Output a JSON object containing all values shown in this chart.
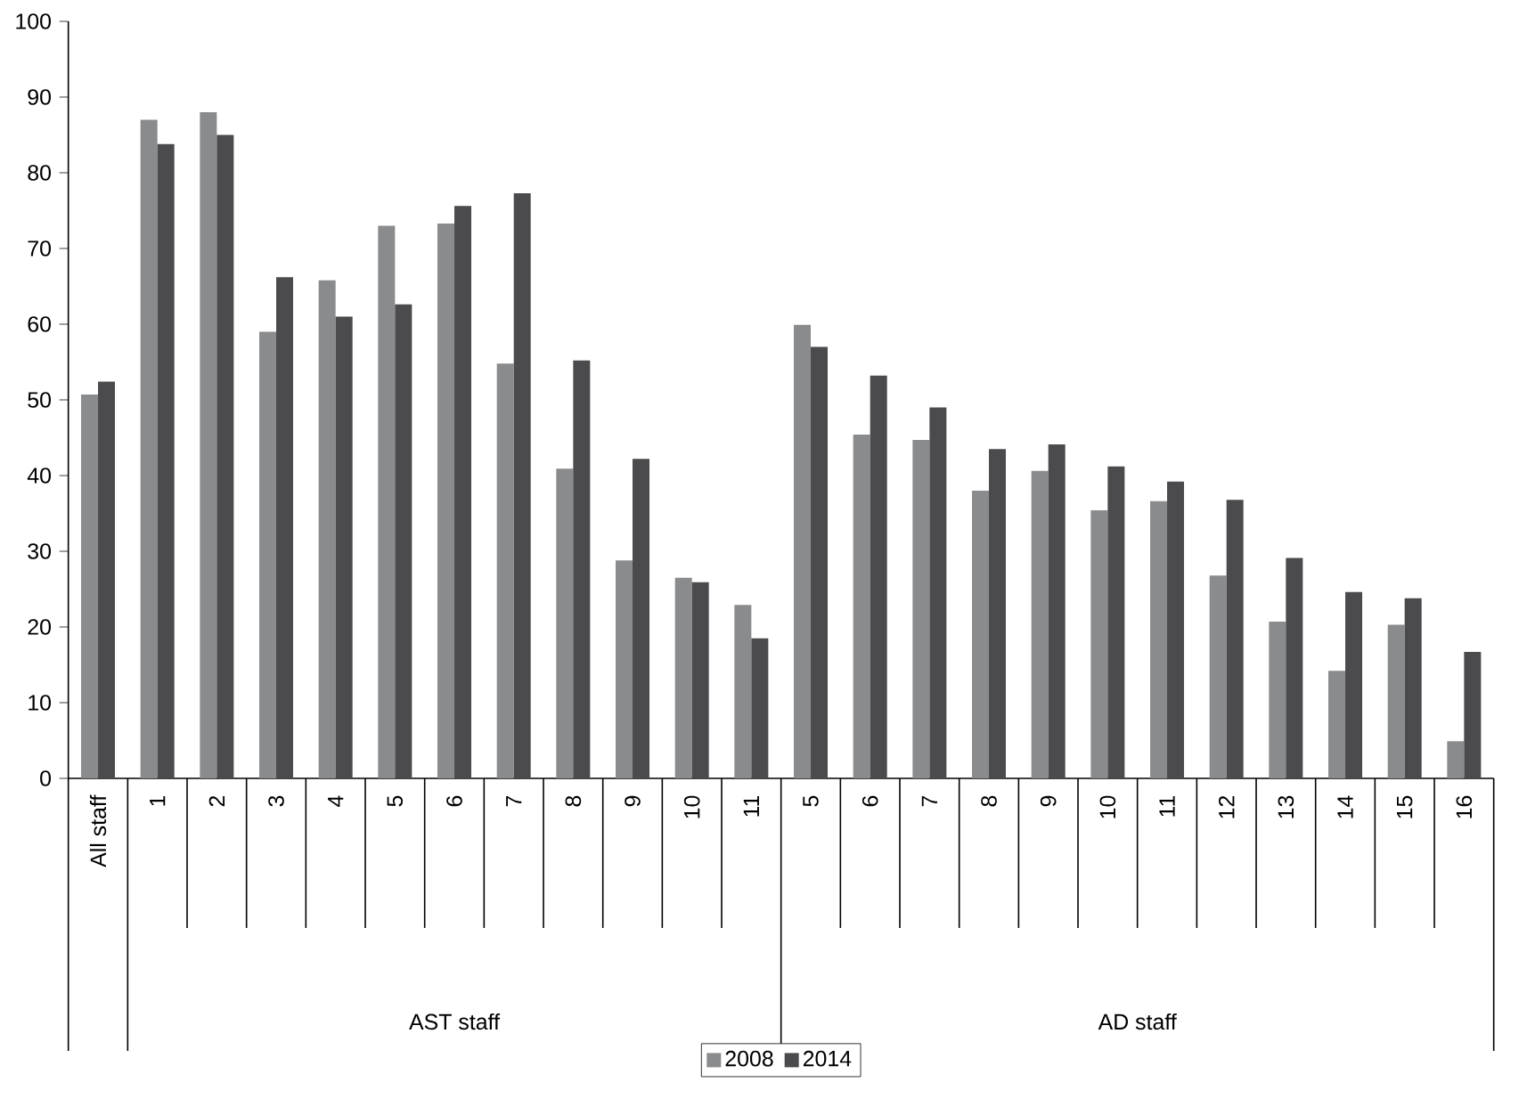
{
  "chart_data": {
    "type": "bar",
    "categories": [
      "All staff",
      "1",
      "2",
      "3",
      "4",
      "5",
      "6",
      "7",
      "8",
      "9",
      "10",
      "11",
      "5",
      "6",
      "7",
      "8",
      "9",
      "10",
      "11",
      "12",
      "13",
      "14",
      "15",
      "16"
    ],
    "series": [
      {
        "name": "2008",
        "color": "#8a8b8d",
        "values": [
          50.7,
          87,
          88,
          59,
          65.8,
          73,
          73.3,
          54.8,
          40.9,
          28.8,
          26.5,
          22.9,
          59.9,
          45.4,
          44.7,
          38,
          40.6,
          35.4,
          36.6,
          26.8,
          20.7,
          14.2,
          20.3,
          4.9
        ]
      },
      {
        "name": "2014",
        "color": "#4b4b4d",
        "values": [
          52.4,
          83.8,
          85,
          66.2,
          61,
          62.6,
          75.6,
          77.3,
          55.2,
          42.2,
          25.9,
          18.5,
          57,
          53.2,
          49,
          43.5,
          44.1,
          41.2,
          39.2,
          36.8,
          29.1,
          24.6,
          23.8,
          16.7
        ]
      }
    ],
    "ylim": [
      0,
      100
    ],
    "yticks": [
      0,
      10,
      20,
      30,
      40,
      50,
      60,
      70,
      80,
      90,
      100
    ],
    "annotations": [
      "AST staff",
      "AD staff"
    ],
    "grid": false,
    "legend": "bottom"
  }
}
